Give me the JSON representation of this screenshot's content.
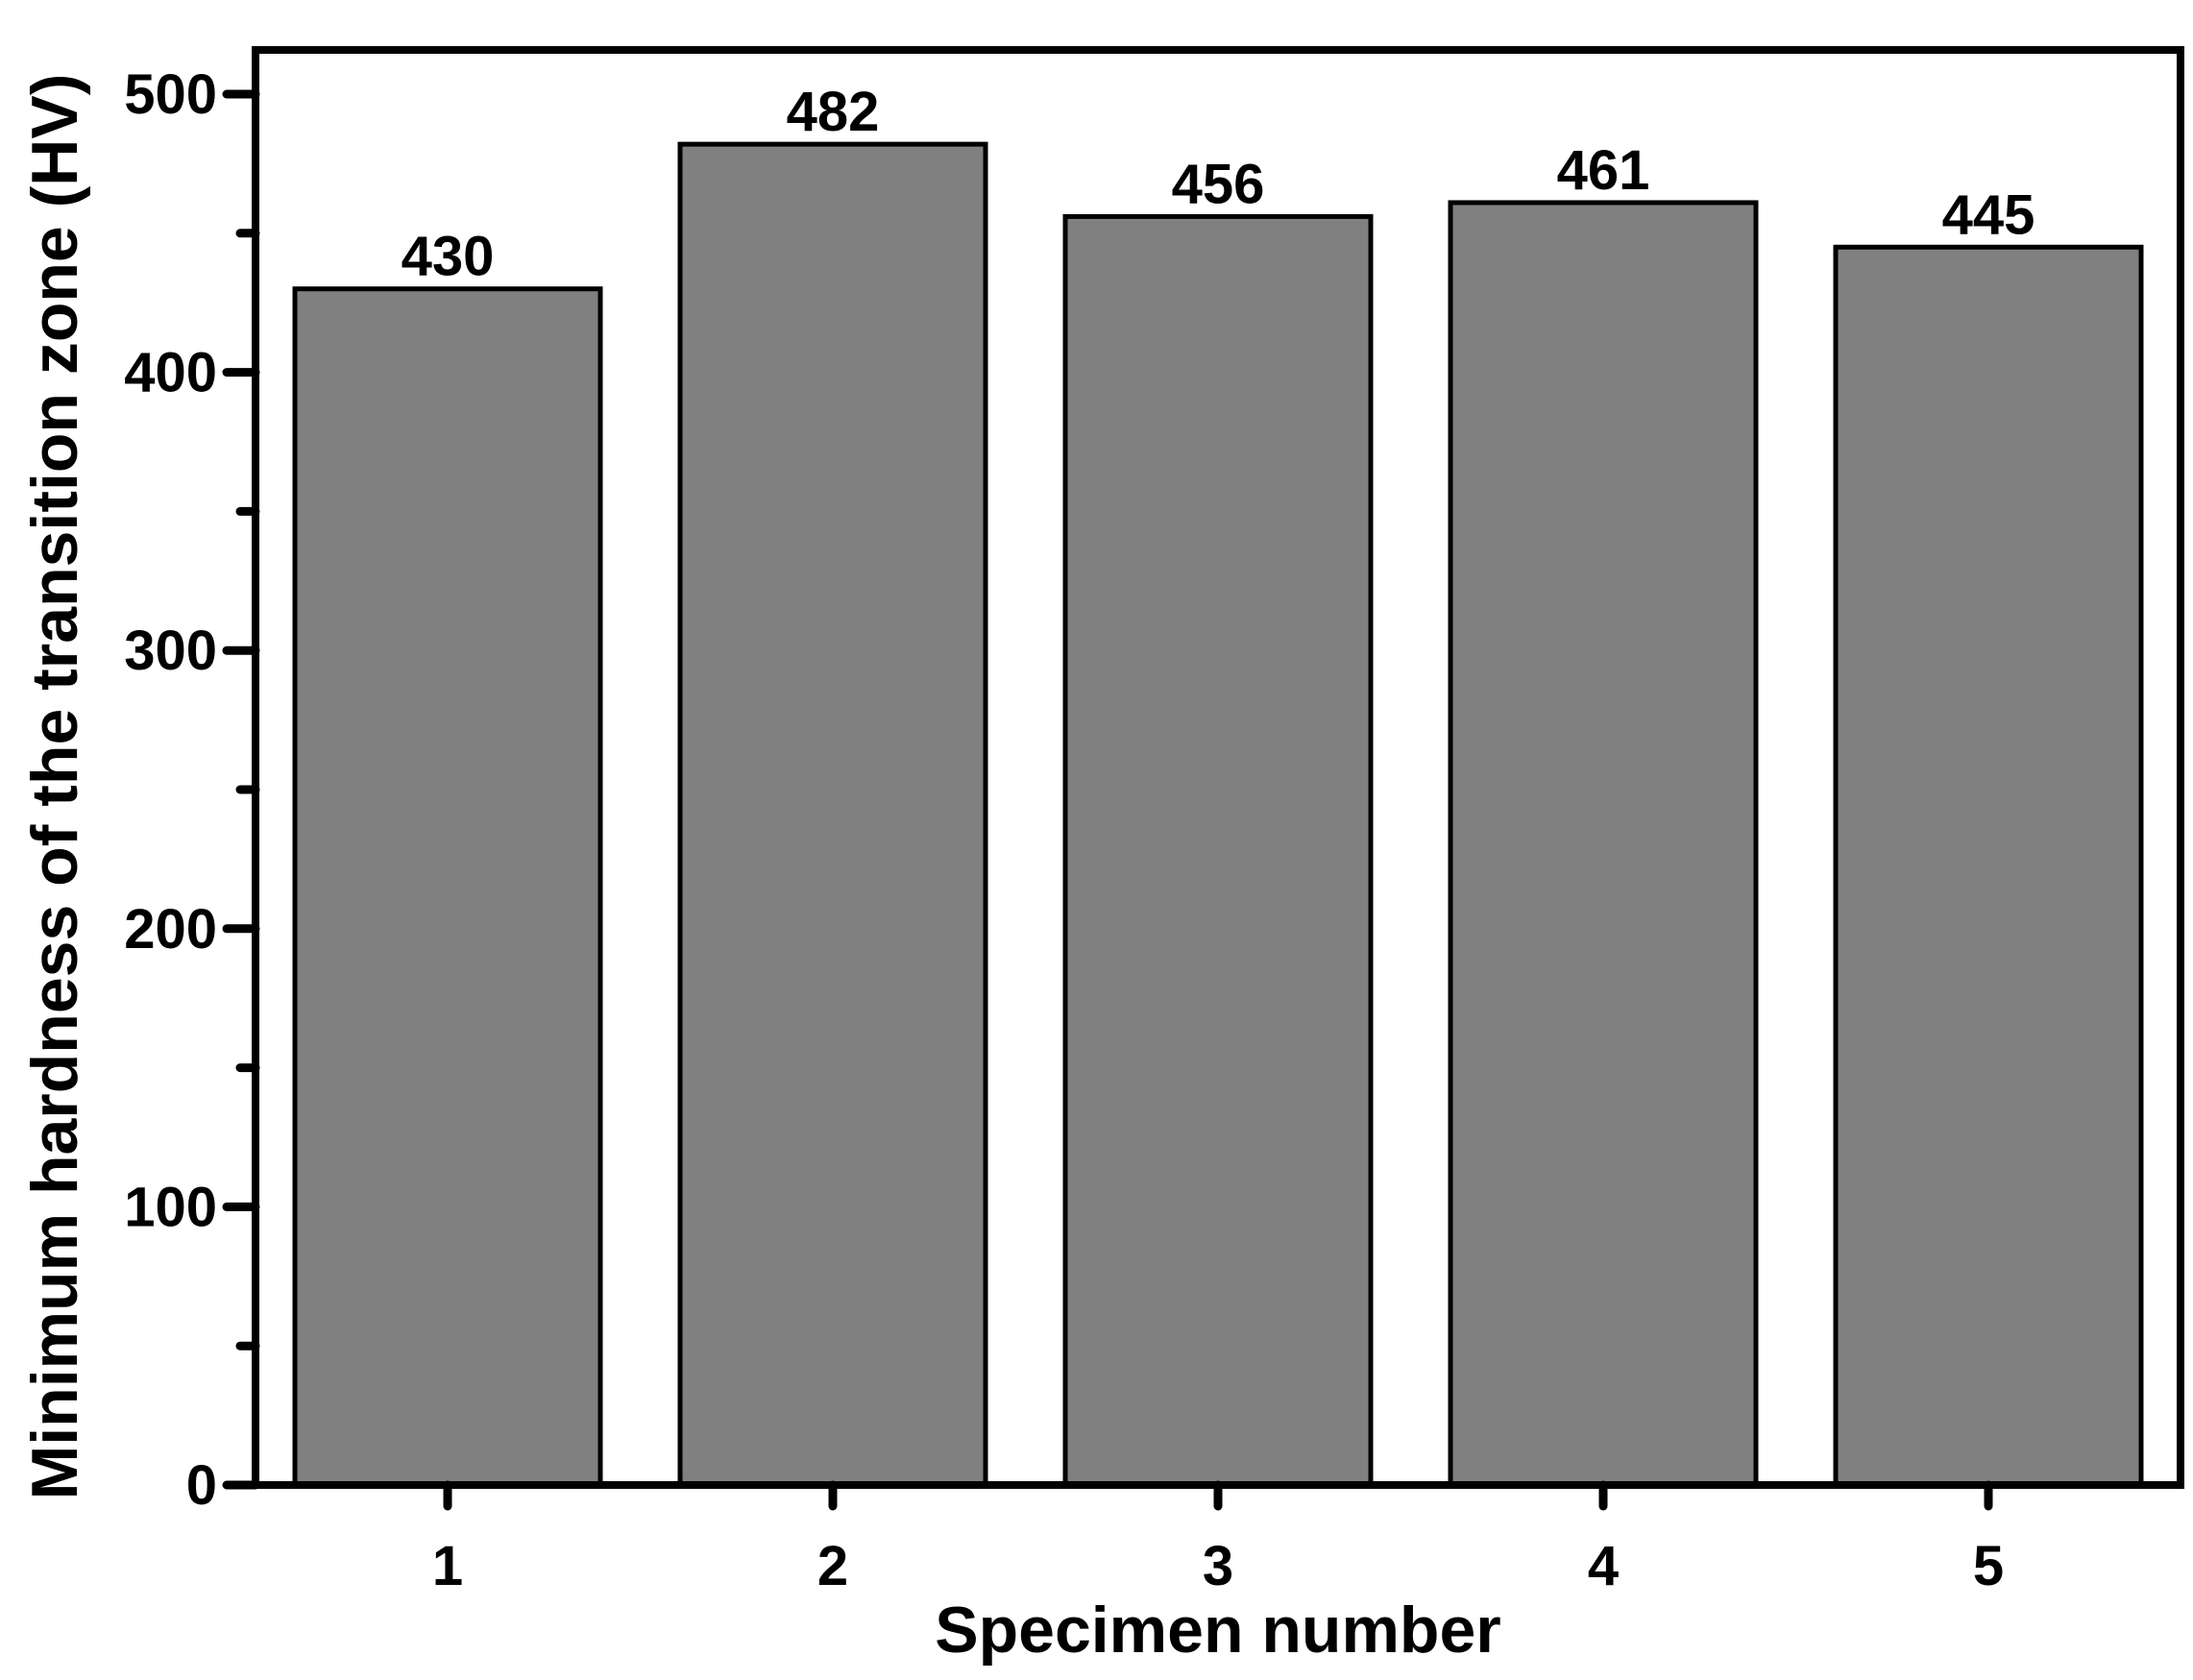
{
  "chart_data": {
    "type": "bar",
    "categories": [
      "1",
      "2",
      "3",
      "4",
      "5"
    ],
    "values": [
      430,
      482,
      456,
      461,
      445
    ],
    "data_labels": [
      "430",
      "482",
      "456",
      "461",
      "445"
    ],
    "title": "",
    "xlabel": "Specimen number",
    "ylabel": "Minimum hardness of the transition zone (HV)",
    "ylim": [
      0,
      500
    ],
    "yticks": [
      0,
      100,
      200,
      300,
      400,
      500
    ],
    "grid": false,
    "legend": "none",
    "colors": {
      "bar_fill": "#808080",
      "bar_stroke": "#000000",
      "axis": "#000000",
      "background": "#ffffff"
    }
  }
}
